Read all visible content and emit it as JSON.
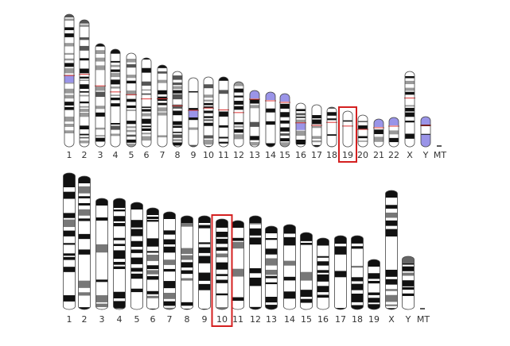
{
  "top_karyotype": {
    "labels": [
      "1",
      "2",
      "3",
      "4",
      "5",
      "6",
      "7",
      "8",
      "9",
      "10",
      "11",
      "12",
      "13",
      "14",
      "15",
      "16",
      "17",
      "18",
      "19",
      "20",
      "21",
      "22",
      "X",
      "Y",
      "MT"
    ],
    "highlighted": "19"
  },
  "bottom_karyotype": {
    "labels": [
      "1",
      "2",
      "3",
      "4",
      "5",
      "6",
      "7",
      "8",
      "9",
      "10",
      "11",
      "12",
      "13",
      "14",
      "15",
      "16",
      "17",
      "18",
      "19",
      "X",
      "Y",
      "MT"
    ],
    "highlighted": "10"
  }
}
